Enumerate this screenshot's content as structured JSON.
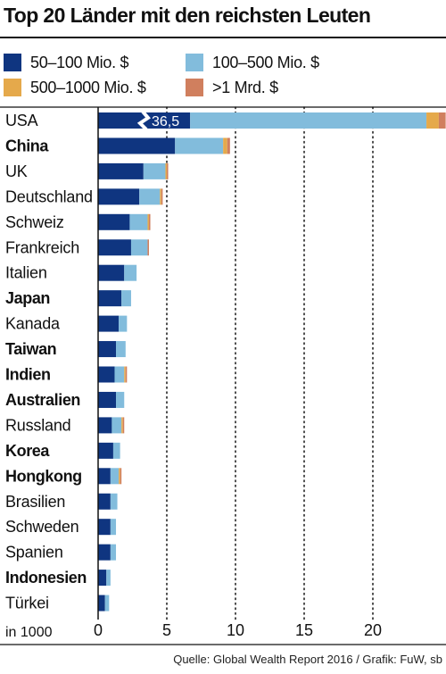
{
  "chart_data": {
    "type": "bar",
    "orientation": "horizontal",
    "stacked": true,
    "title": "Top 20 Länder mit den reichsten Leuten",
    "unit_label": "in 1000",
    "categories": [
      "USA",
      "China",
      "UK",
      "Deutschland",
      "Schweiz",
      "Frankreich",
      "Italien",
      "Japan",
      "Kanada",
      "Taiwan",
      "Indien",
      "Australien",
      "Russland",
      "Korea",
      "Hongkong",
      "Brasilien",
      "Schweden",
      "Spanien",
      "Indonesien",
      "Türkei"
    ],
    "bold_categories": [
      "China",
      "Japan",
      "Taiwan",
      "Indien",
      "Australien",
      "Korea",
      "Hongkong",
      "Indonesien"
    ],
    "series": [
      {
        "name": "50–100 Mio. $",
        "color": "#0f3580",
        "values": [
          36.5,
          5.6,
          3.3,
          3.0,
          2.3,
          2.4,
          1.9,
          1.7,
          1.5,
          1.3,
          1.2,
          1.3,
          1.0,
          1.1,
          0.9,
          0.9,
          0.9,
          0.9,
          0.6,
          0.5
        ]
      },
      {
        "name": "100–500 Mio. $",
        "color": "#82bcdc",
        "values": [
          17.2,
          3.5,
          1.6,
          1.5,
          1.3,
          1.2,
          0.9,
          0.7,
          0.6,
          0.7,
          0.7,
          0.6,
          0.7,
          0.5,
          0.6,
          0.5,
          0.4,
          0.4,
          0.3,
          0.3
        ]
      },
      {
        "name": "500–1000 Mio. $",
        "color": "#e5a94b",
        "values": [
          0.9,
          0.3,
          0.1,
          0.1,
          0.1,
          0.0,
          0.0,
          0.0,
          0.0,
          0.0,
          0.1,
          0.0,
          0.1,
          0.0,
          0.1,
          0.0,
          0.0,
          0.0,
          0.0,
          0.0
        ]
      },
      {
        "name": ">1 Mrd. $",
        "color": "#d07f5e",
        "values": [
          0.5,
          0.2,
          0.1,
          0.1,
          0.1,
          0.1,
          0.0,
          0.0,
          0.0,
          0.0,
          0.1,
          0.0,
          0.1,
          0.0,
          0.1,
          0.0,
          0.0,
          0.0,
          0.0,
          0.0
        ]
      }
    ],
    "xlim": [
      0,
      25
    ],
    "xticks": [
      0,
      5,
      10,
      15,
      20
    ],
    "axis_break": {
      "category": "USA",
      "label": "36,5"
    },
    "grid": "dotted vertical",
    "legend_position": "top"
  },
  "source": "Quelle: Global Wealth Report 2016 / Grafik: FuW, sb"
}
